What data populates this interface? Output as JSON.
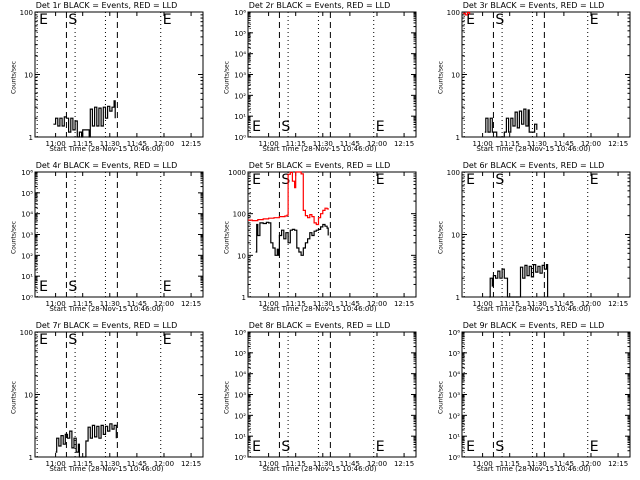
{
  "figure": {
    "x_ticks": [
      "11:00",
      "11:15",
      "11:30",
      "11:45",
      "12:00",
      "12:15"
    ],
    "x_tick_hours": [
      11.0,
      11.25,
      11.5,
      11.75,
      12.0,
      12.25
    ],
    "x_range": [
      10.81,
      12.36
    ],
    "markers": [
      {
        "label": "E",
        "t": 10.83,
        "style": "dotted"
      },
      {
        "label": "S",
        "t": 11.1,
        "style": "dashed"
      },
      {
        "label": "",
        "t": 11.57,
        "style": "dashed"
      },
      {
        "label": "",
        "t": 11.18,
        "style": "dotted"
      },
      {
        "label": "",
        "t": 11.46,
        "style": "dotted"
      },
      {
        "label": "E",
        "t": 11.97,
        "style": "dotted"
      }
    ]
  },
  "chart_data": [
    {
      "type": "line",
      "title": "Det 1r BLACK = Events, RED = LLD",
      "xlabel": "Start Time (28-Nov-15 10:46:00)",
      "ylabel": "Counts/sec",
      "y_scale": "log",
      "ylim": [
        1,
        100
      ],
      "yticks": [
        "1",
        "10",
        "100"
      ],
      "series": [
        {
          "color": "#000000",
          "points": [
            [
              10.98,
              1.6
            ],
            [
              11.0,
              2
            ],
            [
              11.02,
              1.5
            ],
            [
              11.04,
              2
            ],
            [
              11.06,
              1.5
            ],
            [
              11.08,
              2.1
            ],
            [
              11.1,
              2
            ],
            [
              11.12,
              1.2
            ],
            [
              11.14,
              2
            ],
            [
              11.16,
              1.3
            ],
            [
              11.18,
              1.8
            ],
            [
              11.2,
              1
            ],
            [
              11.22,
              1.2
            ],
            [
              11.24,
              1
            ],
            [
              11.25,
              1.3
            ],
            [
              11.31,
              1
            ],
            [
              11.32,
              2.8
            ],
            [
              11.34,
              1.5
            ],
            [
              11.36,
              3
            ],
            [
              11.38,
              1.5
            ],
            [
              11.4,
              2.9
            ],
            [
              11.42,
              1.5
            ],
            [
              11.44,
              3
            ],
            [
              11.46,
              2
            ],
            [
              11.48,
              3.1
            ],
            [
              11.5,
              2.6
            ],
            [
              11.52,
              3
            ],
            [
              11.54,
              3.8
            ],
            [
              11.55,
              2
            ]
          ]
        }
      ]
    },
    {
      "type": "line",
      "title": "Det 2r BLACK = Events, RED = LLD",
      "xlabel": "Start Time (28-Nov-15 10:46:00)",
      "ylabel": "Counts/sec",
      "y_scale": "log",
      "ylim": [
        1,
        1000000
      ],
      "yticks": [
        "10⁰",
        "10¹",
        "10²",
        "10³",
        "10⁴",
        "10⁵",
        "10⁶"
      ],
      "series": []
    },
    {
      "type": "line",
      "title": "Det 3r BLACK = Events, RED = LLD",
      "xlabel": "Start Time (28-Nov-15 10:46:00)",
      "ylabel": "Counts/sec",
      "y_scale": "log",
      "ylim": [
        1,
        100
      ],
      "yticks": [
        "1",
        "10",
        "100"
      ],
      "series": [
        {
          "color": "#ff0000",
          "points": [
            [
              10.82,
              95
            ],
            [
              10.84,
              90
            ],
            [
              10.86,
              98
            ],
            [
              10.88,
              92
            ]
          ]
        },
        {
          "color": "#000000",
          "points": [
            [
              11.02,
              1.2
            ],
            [
              11.03,
              2
            ],
            [
              11.05,
              1.2
            ],
            [
              11.07,
              2
            ],
            [
              11.09,
              1.2
            ],
            [
              11.13,
              1
            ],
            [
              11.2,
              1.2
            ],
            [
              11.22,
              2
            ],
            [
              11.24,
              1.2
            ],
            [
              11.26,
              2
            ],
            [
              11.28,
              1.5
            ],
            [
              11.3,
              2.5
            ],
            [
              11.32,
              1.4
            ],
            [
              11.34,
              2.6
            ],
            [
              11.36,
              1.6
            ],
            [
              11.38,
              2.8
            ],
            [
              11.4,
              1.5
            ],
            [
              11.42,
              2.7
            ],
            [
              11.43,
              1.2
            ],
            [
              11.47,
              1.2
            ],
            [
              11.48,
              1.6
            ],
            [
              11.5,
              1.3
            ]
          ]
        }
      ]
    },
    {
      "type": "line",
      "title": "Det 4r BLACK = Events, RED = LLD",
      "xlabel": "Start Time (28-Nov-15 10:46:00)",
      "ylabel": "Counts/sec",
      "y_scale": "log",
      "ylim": [
        1,
        1000000
      ],
      "yticks": [
        "10⁰",
        "10¹",
        "10²",
        "10³",
        "10⁴",
        "10⁵",
        "10⁶"
      ],
      "series": []
    },
    {
      "type": "line",
      "title": "Det 5r BLACK = Events, RED = LLD",
      "xlabel": "Start Time (28-Nov-15 10:46:00)",
      "ylabel": "Counts/sec",
      "y_scale": "log",
      "ylim": [
        1,
        1000
      ],
      "yticks": [
        "1",
        "10",
        "100",
        "1000"
      ],
      "series": [
        {
          "color": "#ff0000",
          "points": [
            [
              10.81,
              70
            ],
            [
              10.85,
              68
            ],
            [
              10.9,
              72
            ],
            [
              10.95,
              75
            ],
            [
              11.0,
              78
            ],
            [
              11.05,
              80
            ],
            [
              11.1,
              85
            ],
            [
              11.15,
              88
            ],
            [
              11.17,
              92
            ],
            [
              11.18,
              880
            ],
            [
              11.2,
              980
            ],
            [
              11.22,
              600
            ],
            [
              11.24,
              420
            ],
            [
              11.25,
              1000
            ],
            [
              11.28,
              1000
            ],
            [
              11.3,
              900
            ],
            [
              11.32,
              120
            ],
            [
              11.34,
              90
            ],
            [
              11.36,
              80
            ],
            [
              11.38,
              95
            ],
            [
              11.4,
              85
            ],
            [
              11.42,
              60
            ],
            [
              11.44,
              55
            ],
            [
              11.46,
              80
            ],
            [
              11.48,
              100
            ],
            [
              11.5,
              120
            ],
            [
              11.52,
              135
            ],
            [
              11.54,
              130
            ],
            [
              11.55,
              125
            ]
          ]
        },
        {
          "color": "#000000",
          "points": [
            [
              10.88,
              12
            ],
            [
              10.89,
              55
            ],
            [
              10.9,
              30
            ],
            [
              10.92,
              60
            ],
            [
              10.95,
              58
            ],
            [
              10.98,
              62
            ],
            [
              11.0,
              60
            ],
            [
              11.02,
              20
            ],
            [
              11.04,
              15
            ],
            [
              11.06,
              10
            ],
            [
              11.08,
              14
            ],
            [
              11.09,
              10
            ],
            [
              11.1,
              30
            ],
            [
              11.12,
              40
            ],
            [
              11.14,
              25
            ],
            [
              11.16,
              35
            ],
            [
              11.18,
              20
            ],
            [
              11.2,
              40
            ],
            [
              11.22,
              42
            ],
            [
              11.24,
              40
            ],
            [
              11.26,
              15
            ],
            [
              11.28,
              12
            ],
            [
              11.3,
              10
            ],
            [
              11.32,
              15
            ],
            [
              11.34,
              20
            ],
            [
              11.36,
              25
            ],
            [
              11.38,
              35
            ],
            [
              11.4,
              30
            ],
            [
              11.42,
              38
            ],
            [
              11.44,
              40
            ],
            [
              11.46,
              42
            ],
            [
              11.48,
              48
            ],
            [
              11.5,
              55
            ],
            [
              11.52,
              50
            ],
            [
              11.54,
              45
            ],
            [
              11.55,
              30
            ]
          ]
        }
      ]
    },
    {
      "type": "line",
      "title": "Det 6r BLACK = Events, RED = LLD",
      "xlabel": "Start Time (28-Nov-15 10:46:00)",
      "ylabel": "Counts/sec",
      "y_scale": "log",
      "ylim": [
        1,
        100
      ],
      "yticks": [
        "1",
        "10",
        "100"
      ],
      "series": [
        {
          "color": "#000000",
          "points": [
            [
              11.06,
              1
            ],
            [
              11.07,
              2
            ],
            [
              11.09,
              1.5
            ],
            [
              11.1,
              2.2
            ],
            [
              11.12,
              2
            ],
            [
              11.14,
              2.6
            ],
            [
              11.16,
              2
            ],
            [
              11.18,
              2.8
            ],
            [
              11.2,
              2
            ],
            [
              11.23,
              1
            ],
            [
              11.34,
              1
            ],
            [
              11.35,
              3
            ],
            [
              11.37,
              2
            ],
            [
              11.39,
              3.2
            ],
            [
              11.41,
              2.2
            ],
            [
              11.43,
              3.1
            ],
            [
              11.45,
              2.1
            ],
            [
              11.47,
              3.3
            ],
            [
              11.49,
              2.5
            ],
            [
              11.51,
              3.1
            ],
            [
              11.53,
              2.4
            ],
            [
              11.55,
              3.2
            ],
            [
              11.57,
              2.8
            ],
            [
              11.59,
              3.3
            ],
            [
              11.6,
              1
            ]
          ]
        }
      ]
    },
    {
      "type": "line",
      "title": "Det 7r BLACK = Events, RED = LLD",
      "xlabel": "Start Time (28-Nov-15 10:46:00)",
      "ylabel": "Counts/sec",
      "y_scale": "log",
      "ylim": [
        1,
        100
      ],
      "yticks": [
        "1",
        "10",
        "100"
      ],
      "series": [
        {
          "color": "#000000",
          "points": [
            [
              11.0,
              1.2
            ],
            [
              11.01,
              2
            ],
            [
              11.03,
              1.5
            ],
            [
              11.05,
              2.2
            ],
            [
              11.07,
              1.6
            ],
            [
              11.09,
              2.3
            ],
            [
              11.11,
              2
            ],
            [
              11.13,
              2.6
            ],
            [
              11.15,
              1.4
            ],
            [
              11.17,
              2
            ],
            [
              11.19,
              1.2
            ],
            [
              11.21,
              1.6
            ],
            [
              11.22,
              1
            ],
            [
              11.27,
              1
            ],
            [
              11.28,
              1.8
            ],
            [
              11.3,
              3
            ],
            [
              11.32,
              2
            ],
            [
              11.34,
              3.2
            ],
            [
              11.36,
              2.1
            ],
            [
              11.38,
              3.1
            ],
            [
              11.4,
              2
            ],
            [
              11.42,
              3.2
            ],
            [
              11.44,
              2.3
            ],
            [
              11.46,
              3.1
            ],
            [
              11.48,
              2.6
            ],
            [
              11.5,
              3.4
            ],
            [
              11.52,
              2.8
            ],
            [
              11.54,
              3.2
            ],
            [
              11.56,
              2
            ]
          ]
        }
      ]
    },
    {
      "type": "line",
      "title": "Det 8r BLACK = Events, RED = LLD",
      "xlabel": "Start Time (28-Nov-15 10:46:00)",
      "ylabel": "Counts/sec",
      "y_scale": "log",
      "ylim": [
        1,
        1000000
      ],
      "yticks": [
        "10⁰",
        "10¹",
        "10²",
        "10³",
        "10⁴",
        "10⁵",
        "10⁶"
      ],
      "series": []
    },
    {
      "type": "line",
      "title": "Det 9r BLACK = Events, RED = LLD",
      "xlabel": "Start Time (28-Nov-15 10:46:00)",
      "ylabel": "Counts/sec",
      "y_scale": "log",
      "ylim": [
        1,
        1000000
      ],
      "yticks": [
        "10⁰",
        "10¹",
        "10²",
        "10³",
        "10⁴",
        "10⁵",
        "10⁶"
      ],
      "series": []
    }
  ]
}
